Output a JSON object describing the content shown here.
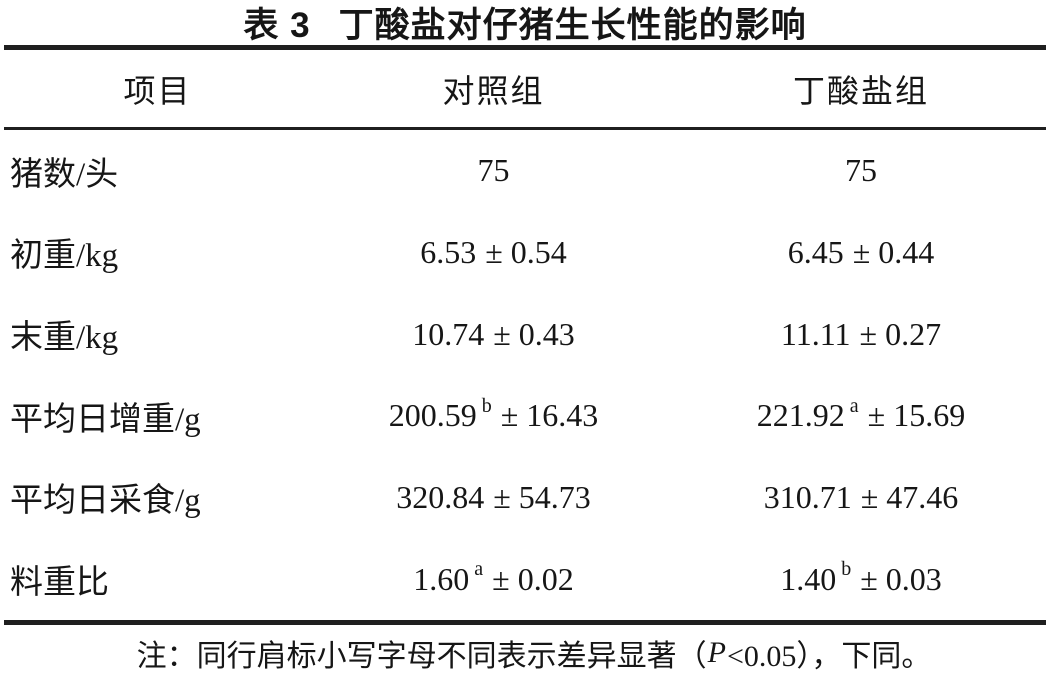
{
  "title": {
    "label": "表 3",
    "text": "丁酸盐对仔猪生长性能的影响"
  },
  "table": {
    "columns": {
      "item": "项目",
      "control": "对照组",
      "butyrate": "丁酸盐组"
    },
    "rows": [
      {
        "label": "猪数/头",
        "control": {
          "mean": "75",
          "sup": "",
          "pm": ""
        },
        "butyrate": {
          "mean": "75",
          "sup": "",
          "pm": ""
        }
      },
      {
        "label": "初重/kg",
        "control": {
          "mean": "6.53",
          "sup": "",
          "pm": "± 0.54"
        },
        "butyrate": {
          "mean": "6.45",
          "sup": "",
          "pm": "± 0.44"
        }
      },
      {
        "label": "末重/kg",
        "control": {
          "mean": "10.74",
          "sup": "",
          "pm": "± 0.43"
        },
        "butyrate": {
          "mean": "11.11",
          "sup": "",
          "pm": "± 0.27"
        }
      },
      {
        "label": "平均日增重/g",
        "control": {
          "mean": "200.59",
          "sup": "b",
          "pm": "± 16.43"
        },
        "butyrate": {
          "mean": "221.92",
          "sup": "a",
          "pm": "± 15.69"
        }
      },
      {
        "label": "平均日采食/g",
        "control": {
          "mean": "320.84",
          "sup": "",
          "pm": "± 54.73"
        },
        "butyrate": {
          "mean": "310.71",
          "sup": "",
          "pm": "± 47.46"
        }
      },
      {
        "label": "料重比",
        "control": {
          "mean": "1.60",
          "sup": "a",
          "pm": "± 0.02"
        },
        "butyrate": {
          "mean": "1.40",
          "sup": "b",
          "pm": "± 0.03"
        }
      }
    ]
  },
  "note": {
    "before_p": "注：同行肩标小写字母不同表示差异显著（",
    "p": "P",
    "after_p": "<0.05），下同。"
  },
  "colors": {
    "text": "#161616",
    "rule": "#1f1f1f",
    "background": "#ffffff"
  },
  "chart_data": {
    "type": "table",
    "title": "表 3 丁酸盐对仔猪生长性能的影响",
    "columns": [
      "项目",
      "对照组",
      "丁酸盐组"
    ],
    "rows": [
      [
        "猪数/头",
        "75",
        "75"
      ],
      [
        "初重/kg",
        "6.53 ± 0.54",
        "6.45 ± 0.44"
      ],
      [
        "末重/kg",
        "10.74 ± 0.43",
        "11.11 ± 0.27"
      ],
      [
        "平均日增重/g",
        "200.59ᵇ ± 16.43",
        "221.92ᵃ ± 15.69"
      ],
      [
        "平均日采食/g",
        "320.84 ± 54.73",
        "310.71 ± 47.46"
      ],
      [
        "料重比",
        "1.60ᵃ ± 0.02",
        "1.40ᵇ ± 0.03"
      ]
    ],
    "note": "注：同行肩标小写字母不同表示差异显著（P<0.05），下同。"
  }
}
